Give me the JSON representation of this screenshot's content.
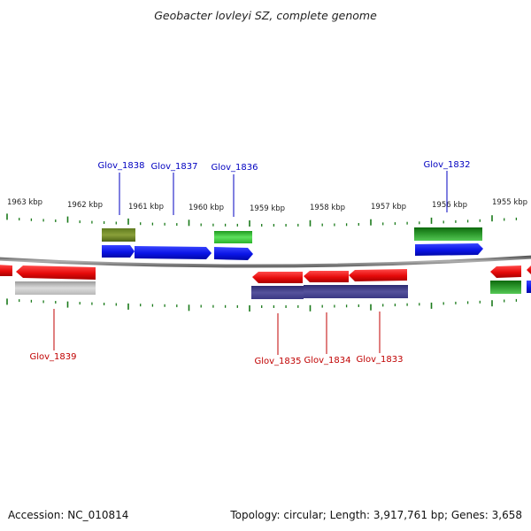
{
  "title": "Geobacter lovleyi SZ, complete genome",
  "footer": {
    "accession": "Accession: NC_010814",
    "topology": "Topology: circular; Length: 3,917,761 bp; Genes: 3,658"
  },
  "scale_labels": [
    "1963 kbp",
    "1962 kbp",
    "1961 kbp",
    "1960 kbp",
    "1959 kbp",
    "1958 kbp",
    "1957 kbp",
    "1956 kbp",
    "1955 kbp"
  ],
  "genes_top": [
    "Glov_1838",
    "Glov_1837",
    "Glov_1836",
    "Glov_1832"
  ],
  "genes_bottom": [
    "Glov_1839",
    "Glov_1835",
    "Glov_1834",
    "Glov_1833"
  ],
  "colors": {
    "forward_label": "#0000c0",
    "reverse_label": "#c00000",
    "forward_cds": "#0a14e6",
    "reverse_cds": "#e60a0a",
    "tick": "#1a7a1a",
    "backbone": "#808080"
  }
}
